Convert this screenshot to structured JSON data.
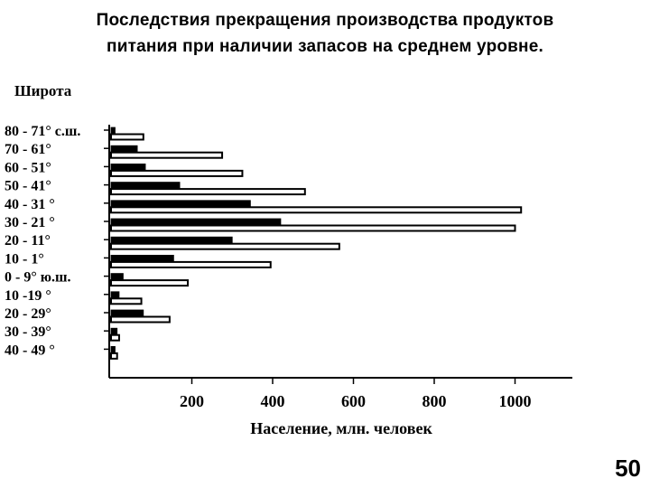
{
  "slide": {
    "title_line1": "Последствия прекращения производства продуктов",
    "title_line2": "питания  при наличии  запасов на среднем уровне.",
    "page_number": "50"
  },
  "chart_data": {
    "type": "bar",
    "orientation": "horizontal",
    "ylabel": "Широта",
    "xlabel": "Население,  млн.  человек",
    "xlim": [
      0,
      1130
    ],
    "xticks": [
      "200",
      "400",
      "600",
      "800",
      "1000"
    ],
    "xtick_values": [
      200,
      400,
      600,
      800,
      1000
    ],
    "categories": [
      "80 - 71° с.ш.",
      "70 - 61°",
      "60 - 51°",
      "50 - 41°",
      "40 - 31 °",
      "30 - 21 °",
      "20 - 11°",
      "10 - 1°",
      "0  -  9° ю.ш.",
      "10 -19 °",
      "20 - 29°",
      "30 - 39°",
      "40 - 49 °"
    ],
    "series": [
      {
        "values": [
          10,
          65,
          85,
          170,
          345,
          420,
          300,
          155,
          30,
          20,
          80,
          15,
          10
        ],
        "color": "#000000"
      },
      {
        "values": [
          80,
          275,
          325,
          480,
          1015,
          1000,
          565,
          395,
          190,
          75,
          145,
          20,
          15
        ],
        "color": "#ffffff"
      }
    ],
    "grid": false,
    "legend": "none"
  }
}
